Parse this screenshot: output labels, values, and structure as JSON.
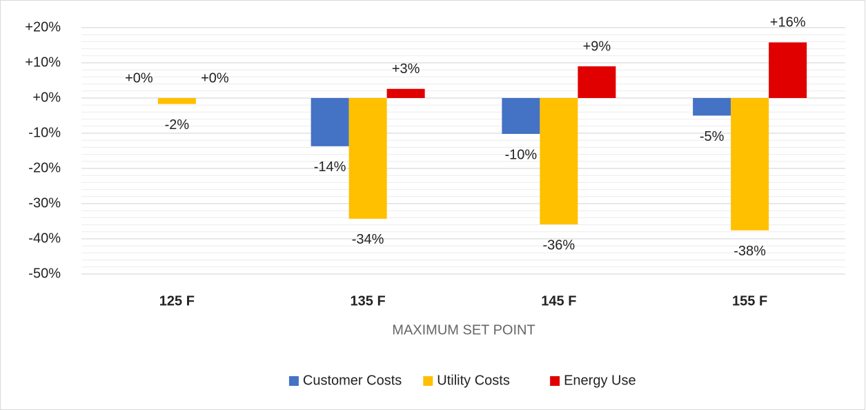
{
  "chart_data": {
    "type": "bar",
    "x_label": "MAXIMUM SET POINT",
    "categories": [
      "125 F",
      "135 F",
      "145 F",
      "155 F"
    ],
    "series": [
      {
        "name": "Customer Costs",
        "color": "#4472c4",
        "values": [
          0,
          -13.7,
          -10.2,
          -5
        ],
        "value_labels": [
          "+0%",
          "-14%",
          "-10%",
          "-5%"
        ]
      },
      {
        "name": "Utility Costs",
        "color": "#ffc000",
        "values": [
          -1.7,
          -34.3,
          -35.9,
          -37.6
        ],
        "value_labels": [
          "-2%",
          "-34%",
          "-36%",
          "-38%"
        ]
      },
      {
        "name": "Energy Use",
        "color": "#e00000",
        "values": [
          0,
          2.6,
          9,
          15.8
        ],
        "value_labels": [
          "+0%",
          "+3%",
          "+9%",
          "+16%"
        ]
      }
    ],
    "ylim": [
      -50,
      20
    ],
    "yticks": [
      {
        "value": -50,
        "label": "-50%"
      },
      {
        "value": -40,
        "label": "-40%"
      },
      {
        "value": -30,
        "label": "-30%"
      },
      {
        "value": -20,
        "label": "-20%"
      },
      {
        "value": -10,
        "label": "-10%"
      },
      {
        "value": 0,
        "label": "+0%"
      },
      {
        "value": 10,
        "label": "+10%"
      },
      {
        "value": 20,
        "label": "+20%"
      }
    ],
    "grid": true,
    "minor_grid_step": 2,
    "legend": "bottom"
  }
}
